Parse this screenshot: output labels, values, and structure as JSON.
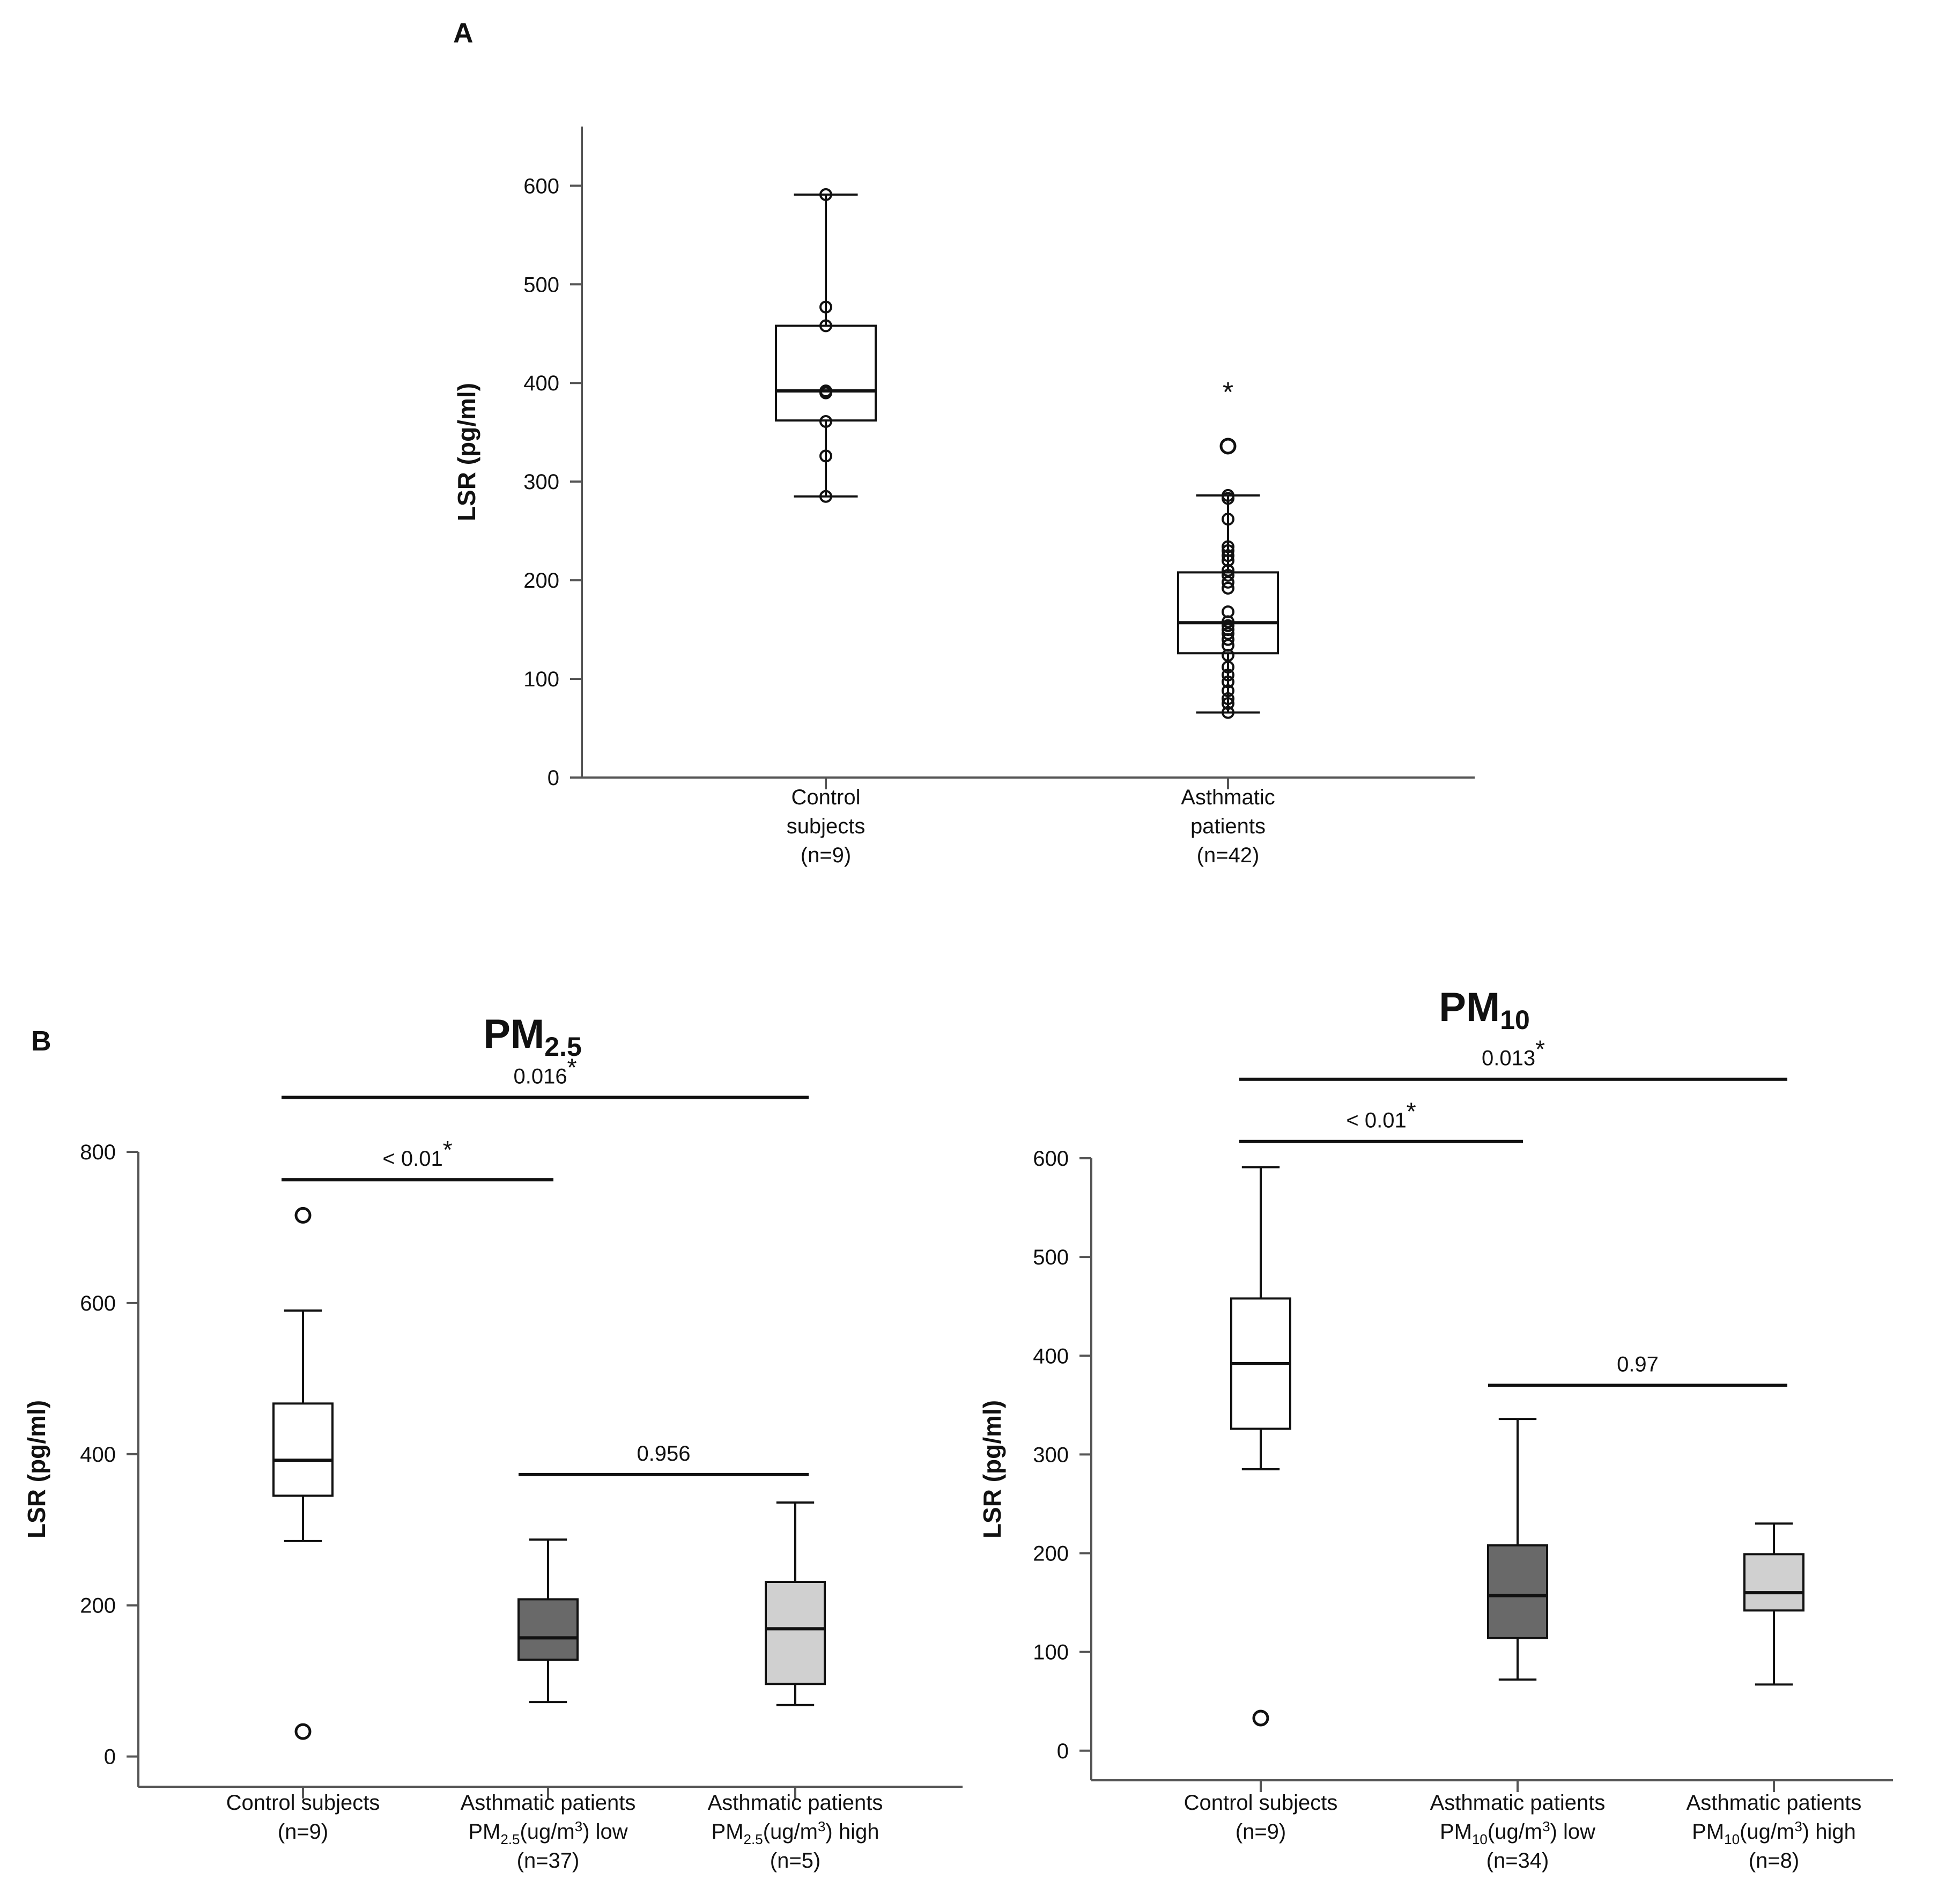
{
  "panel_a": {
    "letter": "A"
  },
  "panel_b": {
    "letter": "B",
    "left_title_main": "PM",
    "left_title_sub": "2.5",
    "right_title_main": "PM",
    "right_title_sub": "10"
  },
  "colors": {
    "axis": "#555555",
    "line": "#111111",
    "white_box": "#ffffff",
    "dark_box": "#696969",
    "light_box": "#d0d0d0"
  },
  "chart_data": [
    {
      "id": "A",
      "type": "box",
      "ylabel": "LSR (pg/ml)",
      "ylim": [
        0,
        660
      ],
      "yticks": [
        0,
        100,
        200,
        300,
        400,
        500,
        600
      ],
      "groups": [
        {
          "label_lines": [
            "Control",
            "subjects",
            "(n=9)"
          ],
          "fill": "white",
          "min": 285,
          "q1": 362,
          "median": 392,
          "q3": 458,
          "max": 591,
          "points": [
            591,
            477,
            458,
            392,
            390,
            361,
            326,
            285
          ],
          "outliers": [],
          "extremes": []
        },
        {
          "label_lines": [
            "Asthmatic",
            "patients",
            "(n=42)"
          ],
          "fill": "white",
          "min": 66,
          "q1": 126,
          "median": 157,
          "q3": 208,
          "max": 286,
          "points": [
            286,
            283,
            262,
            234,
            230,
            225,
            220,
            210,
            205,
            198,
            192,
            168,
            158,
            154,
            150,
            146,
            140,
            134,
            124,
            112,
            104,
            97,
            88,
            80,
            75,
            66
          ],
          "outliers": [
            336
          ],
          "extremes": [
            393
          ]
        }
      ]
    },
    {
      "id": "B-PM2.5",
      "type": "box",
      "ylabel": "LSR (pg/ml)",
      "ylim": [
        -40,
        800
      ],
      "yticks": [
        0,
        200,
        400,
        600,
        800
      ],
      "groups": [
        {
          "label_lines": [
            "Control subjects",
            "(n=9)",
            ""
          ],
          "fill": "white",
          "min": 285,
          "q1": 345,
          "median": 392,
          "q3": 467,
          "max": 590,
          "points": [],
          "outliers": [
            716,
            33
          ],
          "extremes": []
        },
        {
          "label_lines": [
            "Asthmatic patients",
            "PM2.5(ug/m3) low",
            "(n=37)"
          ],
          "fill": "dark",
          "min": 72,
          "q1": 128,
          "median": 157,
          "q3": 208,
          "max": 287,
          "points": [],
          "outliers": [],
          "extremes": []
        },
        {
          "label_lines": [
            "Asthmatic patients",
            "PM2.5(ug/m3) high",
            "(n=5)"
          ],
          "fill": "light",
          "min": 68,
          "q1": 96,
          "median": 169,
          "q3": 231,
          "max": 336,
          "points": [],
          "outliers": [],
          "extremes": []
        }
      ],
      "comparisons": [
        {
          "from": 0,
          "to": 2,
          "label": "0.016",
          "star": "*",
          "y": 872
        },
        {
          "from": 0,
          "to": 1,
          "label": "< 0.01",
          "star": "*",
          "y": 763
        },
        {
          "from": 1,
          "to": 2,
          "label": "0.956",
          "star": "",
          "y": 373
        }
      ]
    },
    {
      "id": "B-PM10",
      "type": "box",
      "ylabel": "LSR (pg/ml)",
      "ylim": [
        -30,
        600
      ],
      "yticks": [
        0,
        100,
        200,
        300,
        400,
        500,
        600
      ],
      "groups": [
        {
          "label_lines": [
            "Control subjects",
            "(n=9)",
            ""
          ],
          "fill": "white",
          "min": 285,
          "q1": 326,
          "median": 392,
          "q3": 458,
          "max": 591,
          "points": [],
          "outliers": [
            33
          ],
          "extremes": []
        },
        {
          "label_lines": [
            "Asthmatic patients",
            "PM10(ug/m3) low",
            "(n=34)"
          ],
          "fill": "dark",
          "min": 72,
          "q1": 114,
          "median": 157,
          "q3": 208,
          "max": 336,
          "points": [],
          "outliers": [],
          "extremes": []
        },
        {
          "label_lines": [
            "Asthmatic patients",
            "PM10(ug/m3) high",
            "(n=8)"
          ],
          "fill": "light",
          "min": 67,
          "q1": 142,
          "median": 160,
          "q3": 199,
          "max": 230,
          "points": [],
          "outliers": [],
          "extremes": []
        }
      ],
      "comparisons": [
        {
          "from": 0,
          "to": 2,
          "label": "0.013",
          "star": "*",
          "y": 680
        },
        {
          "from": 0,
          "to": 1,
          "label": "< 0.01",
          "star": "*",
          "y": 617
        },
        {
          "from": 1,
          "to": 2,
          "label": "0.97",
          "star": "",
          "y": 370
        }
      ]
    }
  ]
}
